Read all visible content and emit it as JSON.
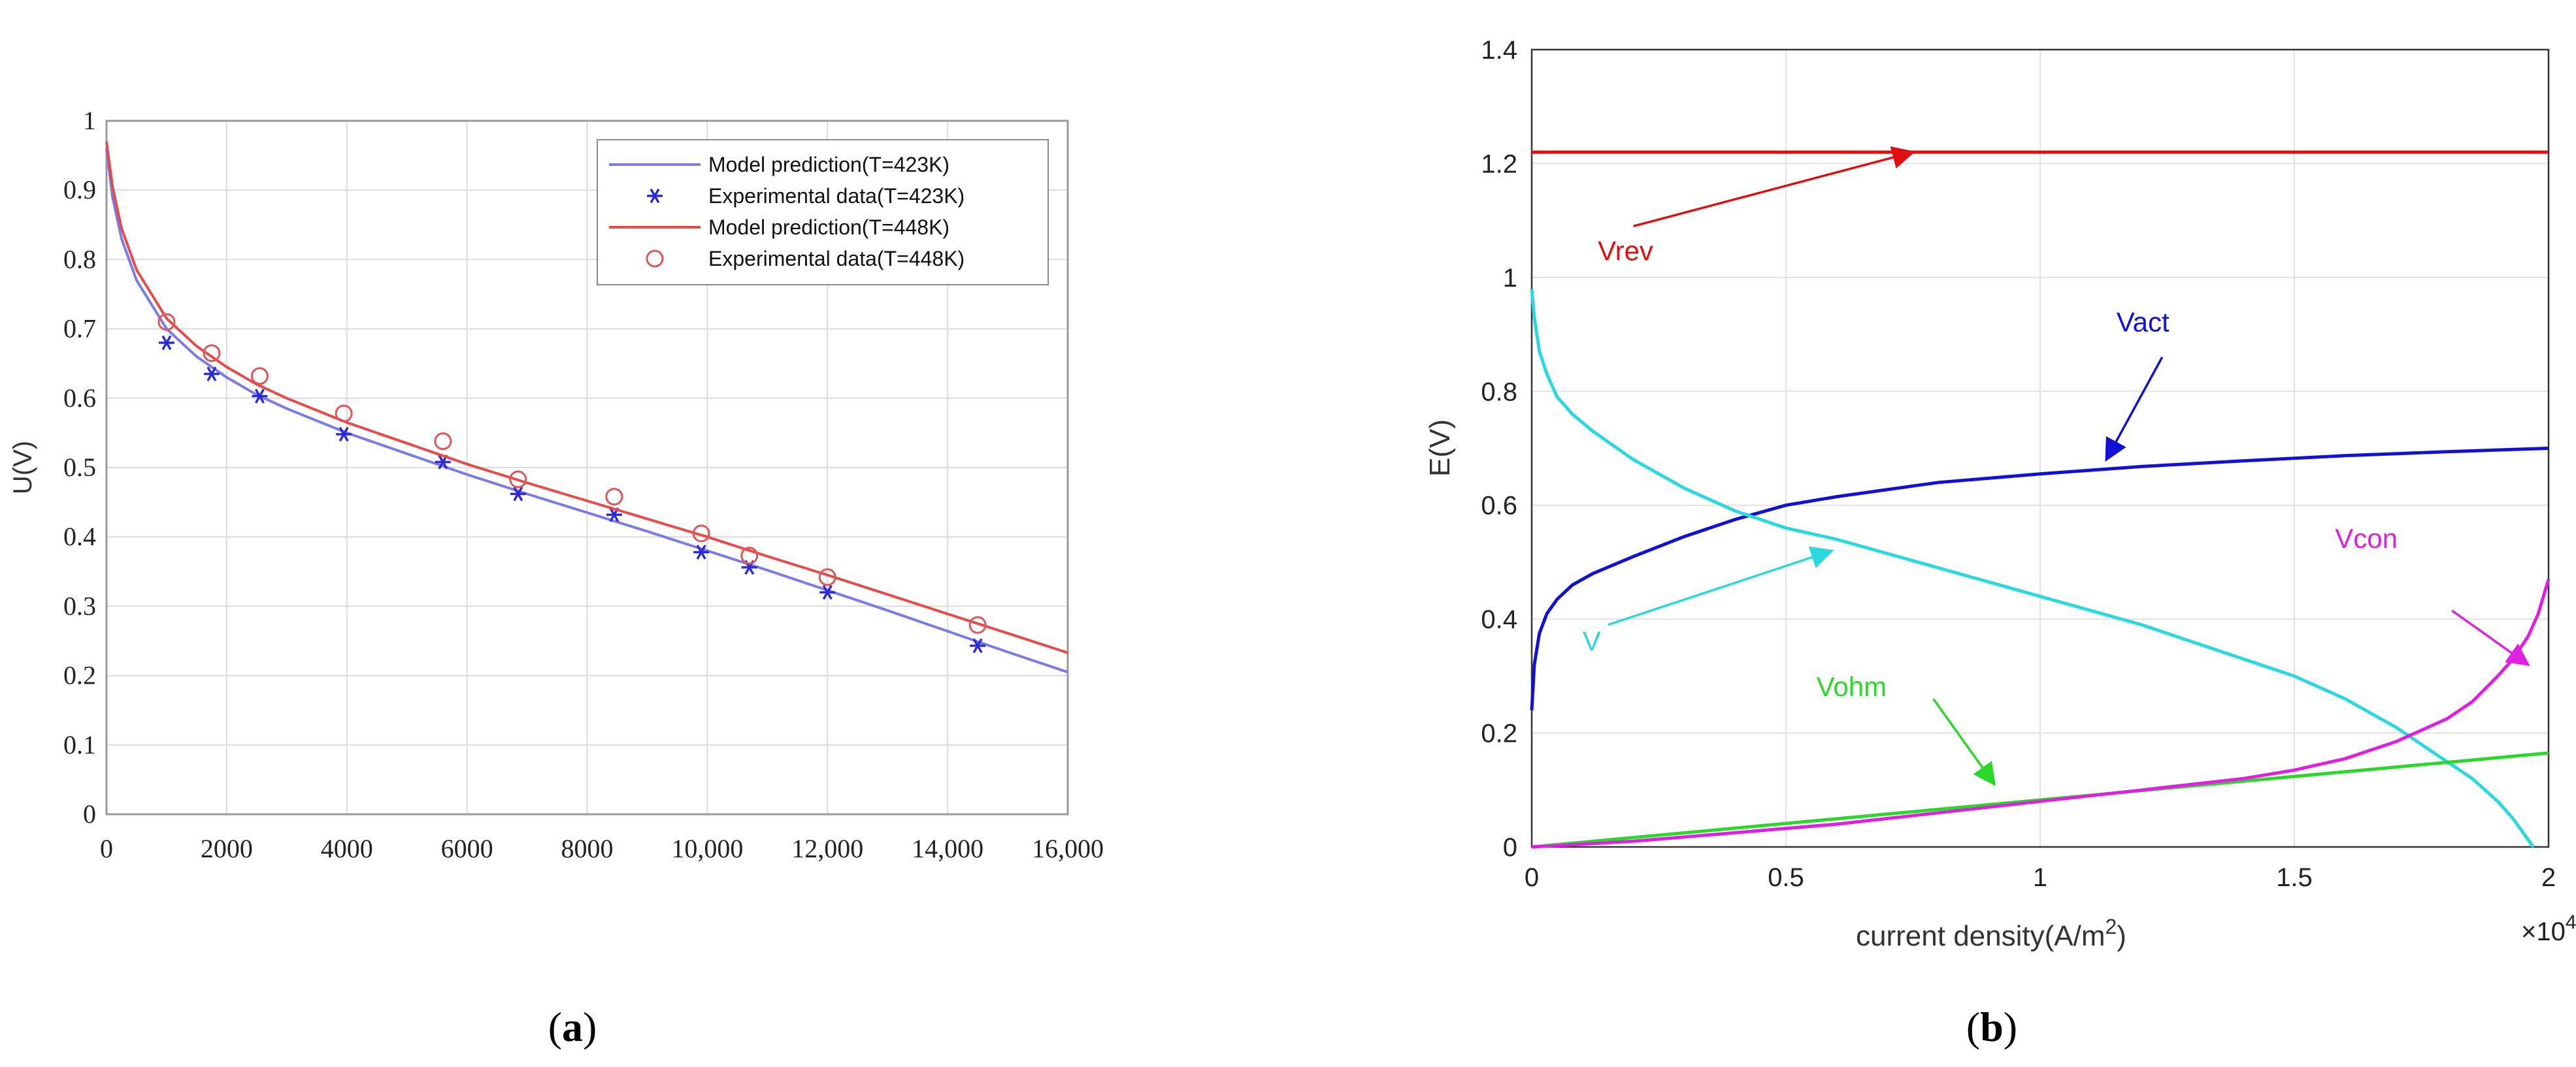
{
  "panels": [
    {
      "paren_open": "(",
      "letter": "a",
      "paren_close": ")"
    },
    {
      "paren_open": "(",
      "letter": "b",
      "paren_close": ")"
    }
  ],
  "chart_data": [
    {
      "type": "line",
      "panel": "a",
      "title": "",
      "xlabel": "",
      "ylabel": "U(V)",
      "xlim": [
        0,
        16000
      ],
      "ylim": [
        0,
        1
      ],
      "grid": true,
      "legend": "top-right",
      "x_ticks": [
        0,
        2000,
        4000,
        6000,
        8000,
        10000,
        12000,
        14000,
        16000
      ],
      "x_tick_labels": [
        "0",
        "2000",
        "4000",
        "6000",
        "8000",
        "10,000",
        "12,000",
        "14,000",
        "16,000"
      ],
      "y_ticks": [
        0,
        0.1,
        0.2,
        0.3,
        0.4,
        0.5,
        0.6,
        0.7,
        0.8,
        0.9,
        1
      ],
      "y_tick_labels": [
        "0",
        "0.1",
        "0.2",
        "0.3",
        "0.4",
        "0.5",
        "0.6",
        "0.7",
        "0.8",
        "0.9",
        "1"
      ],
      "series": [
        {
          "name": "Model prediction(T=423K)",
          "kind": "line",
          "color": "#7b7be8",
          "x": [
            0,
            100,
            250,
            500,
            750,
            1000,
            1500,
            2000,
            2500,
            3000,
            4000,
            5000,
            6000,
            7000,
            8000,
            9000,
            10000,
            11000,
            12000,
            13000,
            14000,
            15000,
            16000
          ],
          "y": [
            0.96,
            0.89,
            0.83,
            0.77,
            0.735,
            0.7,
            0.66,
            0.63,
            0.605,
            0.585,
            0.55,
            0.52,
            0.49,
            0.462,
            0.435,
            0.408,
            0.38,
            0.352,
            0.323,
            0.294,
            0.264,
            0.234,
            0.205
          ]
        },
        {
          "name": "Experimental data(T=423K)",
          "kind": "marker",
          "marker": "asterisk",
          "color": "#2a2ad8",
          "x": [
            1000,
            1750,
            2550,
            3950,
            5600,
            6850,
            8450,
            9900,
            10700,
            12000,
            14500
          ],
          "y": [
            0.68,
            0.635,
            0.603,
            0.548,
            0.508,
            0.462,
            0.432,
            0.378,
            0.356,
            0.32,
            0.243
          ]
        },
        {
          "name": "Model prediction(T=448K)",
          "kind": "line",
          "color": "#e84a4a",
          "x": [
            0,
            100,
            250,
            500,
            750,
            1000,
            1500,
            2000,
            2500,
            3000,
            4000,
            5000,
            6000,
            7000,
            8000,
            9000,
            10000,
            11000,
            12000,
            13000,
            14000,
            15000,
            16000
          ],
          "y": [
            0.97,
            0.905,
            0.845,
            0.785,
            0.75,
            0.715,
            0.675,
            0.645,
            0.62,
            0.6,
            0.565,
            0.535,
            0.505,
            0.478,
            0.452,
            0.426,
            0.4,
            0.372,
            0.345,
            0.317,
            0.289,
            0.261,
            0.233
          ]
        },
        {
          "name": "Experimental data(T=448K)",
          "kind": "marker",
          "marker": "circle",
          "color": "#e05555",
          "x": [
            1000,
            1750,
            2550,
            3950,
            5600,
            6850,
            8450,
            9900,
            10700,
            12000,
            14500
          ],
          "y": [
            0.71,
            0.665,
            0.632,
            0.578,
            0.538,
            0.483,
            0.458,
            0.405,
            0.373,
            0.342,
            0.273
          ]
        }
      ]
    },
    {
      "type": "line",
      "panel": "b",
      "title": "",
      "xlabel": "current density(A/m",
      "xlabel_sup": "2",
      "xlabel_end": ")",
      "ylabel": "E(V)",
      "xlim": [
        0,
        20000
      ],
      "ylim": [
        0,
        1.4
      ],
      "grid": true,
      "x_ticks": [
        0,
        5000,
        10000,
        15000,
        20000
      ],
      "x_tick_labels": [
        "0",
        "0.5",
        "1",
        "1.5",
        "2"
      ],
      "x_multiplier": {
        "base": "×10",
        "exp": "4"
      },
      "y_ticks": [
        0,
        0.2,
        0.4,
        0.6,
        0.8,
        1,
        1.2,
        1.4
      ],
      "y_tick_labels": [
        "0",
        "0.2",
        "0.4",
        "0.6",
        "0.8",
        "1",
        "1.2",
        "1.4"
      ],
      "series": [
        {
          "name": "Vrev",
          "color": "#e01010",
          "x": [
            0,
            20000
          ],
          "y": [
            1.22,
            1.22
          ]
        },
        {
          "name": "Vact",
          "color": "#1010d8",
          "x": [
            0,
            50,
            150,
            300,
            500,
            800,
            1200,
            2000,
            3000,
            4000,
            5000,
            6000,
            8000,
            10000,
            12000,
            14000,
            16000,
            18000,
            20000
          ],
          "y": [
            0.24,
            0.32,
            0.375,
            0.41,
            0.435,
            0.46,
            0.48,
            0.51,
            0.545,
            0.575,
            0.6,
            0.615,
            0.64,
            0.655,
            0.668,
            0.678,
            0.687,
            0.694,
            0.7
          ]
        },
        {
          "name": "V",
          "color": "#2ad8e0",
          "x": [
            0,
            50,
            150,
            300,
            500,
            800,
            1200,
            2000,
            3000,
            4000,
            5000,
            6000,
            8000,
            10000,
            12000,
            14000,
            15000,
            16000,
            17000,
            18000,
            18500,
            19000,
            19300,
            19500,
            19700
          ],
          "y": [
            0.98,
            0.93,
            0.87,
            0.83,
            0.79,
            0.76,
            0.73,
            0.68,
            0.63,
            0.59,
            0.56,
            0.54,
            0.49,
            0.44,
            0.39,
            0.33,
            0.3,
            0.26,
            0.21,
            0.15,
            0.12,
            0.08,
            0.05,
            0.025,
            0
          ]
        },
        {
          "name": "Vohm",
          "color": "#2ad82a",
          "x": [
            0,
            20000
          ],
          "y": [
            0,
            0.165
          ]
        },
        {
          "name": "Vcon",
          "color": "#e020e0",
          "x": [
            0,
            2000,
            4000,
            6000,
            8000,
            10000,
            12000,
            14000,
            15000,
            16000,
            17000,
            18000,
            18500,
            19000,
            19300,
            19600,
            19800,
            20000
          ],
          "y": [
            0,
            0.01,
            0.025,
            0.04,
            0.06,
            0.08,
            0.1,
            0.12,
            0.135,
            0.155,
            0.185,
            0.225,
            0.255,
            0.3,
            0.33,
            0.37,
            0.41,
            0.47
          ]
        }
      ],
      "annotations": [
        {
          "text": "Vrev",
          "color": "#e01010",
          "x": 1300,
          "y": 1.03,
          "arrow_from": [
            2000,
            1.09
          ],
          "arrow_to": [
            7500,
            1.22
          ]
        },
        {
          "text": "Vact",
          "color": "#1010d8",
          "x": 11500,
          "y": 0.905,
          "arrow_from": [
            12400,
            0.86
          ],
          "arrow_to": [
            11300,
            0.68
          ]
        },
        {
          "text": "V",
          "color": "#2ad8e0",
          "x": 1000,
          "y": 0.345,
          "arrow_from": [
            1500,
            0.39
          ],
          "arrow_to": [
            5900,
            0.52
          ]
        },
        {
          "text": "Vohm",
          "color": "#2ad82a",
          "x": 5600,
          "y": 0.265,
          "arrow_from": [
            7900,
            0.26
          ],
          "arrow_to": [
            9100,
            0.11
          ]
        },
        {
          "text": "Vcon",
          "color": "#e020e0",
          "x": 15800,
          "y": 0.525,
          "arrow_from": [
            18100,
            0.415
          ],
          "arrow_to": [
            19600,
            0.32
          ]
        }
      ]
    }
  ]
}
